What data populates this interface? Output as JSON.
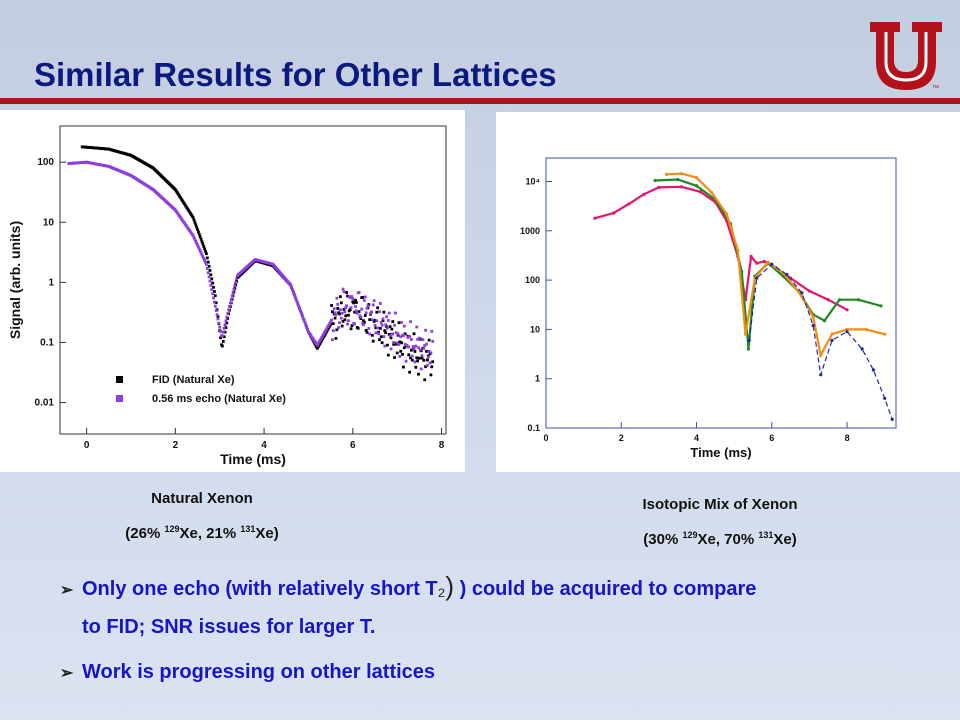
{
  "slide": {
    "title": "Similar Results for Other Lattices",
    "accent": "#b3121b",
    "title_color": "#0b1a80"
  },
  "logo": {
    "letter": "U",
    "mark": "™"
  },
  "captions": {
    "left_title": "Natural Xenon",
    "left_sub_pre": "(26% ",
    "left_sub_sup1": "129",
    "left_sub_mid": "Xe, 21% ",
    "left_sub_sup2": "131",
    "left_sub_post": "Xe)",
    "right_title": "Isotopic Mix of Xenon",
    "right_sub_pre": "(30% ",
    "right_sub_sup1": "129",
    "right_sub_mid": "Xe, 70% ",
    "right_sub_sup2": "131",
    "right_sub_post": "Xe)"
  },
  "bullets": [
    {
      "line1a": "Only one echo (with relatively short T",
      "line1b": ") could be acquired to compare",
      "line2": "to FID; SNR issues for larger T."
    },
    {
      "line1a": "Work is progressing on other lattices"
    }
  ],
  "chart_data": [
    {
      "type": "scatter",
      "xlabel": "Time (ms)",
      "ylabel": "Signal (arb. units)",
      "xlim": [
        -0.6,
        8.1
      ],
      "ylim": [
        0.003,
        400
      ],
      "yscale": "log",
      "xticks": [
        0,
        2,
        4,
        6,
        8
      ],
      "yticks": [
        0.01,
        0.1,
        1,
        10,
        100
      ],
      "ytick_labels": [
        "0.01",
        "0.1",
        "1",
        "10",
        "100"
      ],
      "legend_position": "bottom-left",
      "series": [
        {
          "name": "FID (Natural Xe)",
          "color": "#000000",
          "x": [
            -0.1,
            0.5,
            1.0,
            1.5,
            2.0,
            2.4,
            2.7,
            2.9,
            3.05,
            3.2,
            3.4,
            3.8,
            4.2,
            4.6,
            5.0,
            5.2,
            5.5,
            5.8,
            6.2,
            6.6,
            7.0,
            7.4,
            7.8
          ],
          "y": [
            180,
            165,
            130,
            80,
            35,
            12,
            3,
            0.6,
            0.08,
            0.3,
            1.2,
            2.3,
            1.9,
            0.9,
            0.15,
            0.08,
            0.2,
            0.35,
            0.3,
            0.18,
            0.1,
            0.06,
            0.05
          ]
        },
        {
          "name": "0.56 ms echo (Natural Xe)",
          "color": "#8e3ee0",
          "x": [
            -0.4,
            0.0,
            0.5,
            1.0,
            1.5,
            2.0,
            2.4,
            2.7,
            2.9,
            3.05,
            3.2,
            3.4,
            3.8,
            4.2,
            4.6,
            5.0,
            5.2,
            5.5,
            5.8,
            6.2,
            6.6,
            7.0,
            7.4,
            7.8
          ],
          "y": [
            95,
            100,
            85,
            60,
            35,
            16,
            6,
            2,
            0.4,
            0.12,
            0.35,
            1.3,
            2.4,
            2.0,
            0.9,
            0.15,
            0.09,
            0.22,
            0.4,
            0.35,
            0.22,
            0.13,
            0.09,
            0.07
          ]
        }
      ]
    },
    {
      "type": "line",
      "xlabel": "Time (ms)",
      "ylabel": "",
      "xlim": [
        0,
        9.3
      ],
      "ylim": [
        0.1,
        30000
      ],
      "yscale": "log",
      "xticks": [
        0,
        2,
        4,
        6,
        8
      ],
      "yticks": [
        0.1,
        1,
        10,
        100,
        1000,
        10000
      ],
      "ytick_labels": [
        "0.1",
        "1",
        "10",
        "100",
        "1000",
        "10⁴"
      ],
      "series": [
        {
          "color": "#e8126e",
          "x": [
            1.3,
            1.8,
            2.2,
            2.6,
            3.0,
            3.6,
            4.1,
            4.5,
            4.8,
            5.1,
            5.3,
            5.45,
            5.6,
            5.8,
            6.1,
            6.5,
            7.0,
            7.5,
            8.0
          ],
          "y": [
            1800,
            2300,
            3500,
            5500,
            7600,
            7800,
            6200,
            3800,
            1600,
            300,
            40,
            300,
            220,
            240,
            180,
            110,
            60,
            40,
            25
          ]
        },
        {
          "color": "#1f8a23",
          "x": [
            2.9,
            3.5,
            4.0,
            4.5,
            4.9,
            5.2,
            5.38,
            5.55,
            5.9,
            6.3,
            6.7,
            7.1,
            7.4,
            7.8,
            8.3,
            8.9
          ],
          "y": [
            10500,
            11000,
            8200,
            4300,
            1400,
            150,
            4,
            120,
            220,
            120,
            60,
            20,
            15,
            40,
            40,
            30
          ]
        },
        {
          "color": "#f28d14",
          "x": [
            3.2,
            3.6,
            4.0,
            4.4,
            4.8,
            5.1,
            5.3,
            5.55,
            5.9,
            6.3,
            6.7,
            7.1,
            7.3,
            7.6,
            8.0,
            8.5,
            9.0
          ],
          "y": [
            14000,
            14500,
            12000,
            6000,
            2200,
            400,
            8,
            110,
            230,
            140,
            60,
            18,
            3,
            8,
            10,
            10,
            8
          ]
        },
        {
          "color": "#1a2a9e",
          "x": [
            5.4,
            5.6,
            6.0,
            6.4,
            6.8,
            7.1,
            7.3,
            7.6,
            8.0,
            8.4,
            8.7,
            9.0,
            9.2
          ],
          "y": [
            6,
            110,
            210,
            130,
            55,
            12,
            1.2,
            6,
            9,
            4,
            1.5,
            0.4,
            0.15
          ]
        }
      ]
    }
  ]
}
